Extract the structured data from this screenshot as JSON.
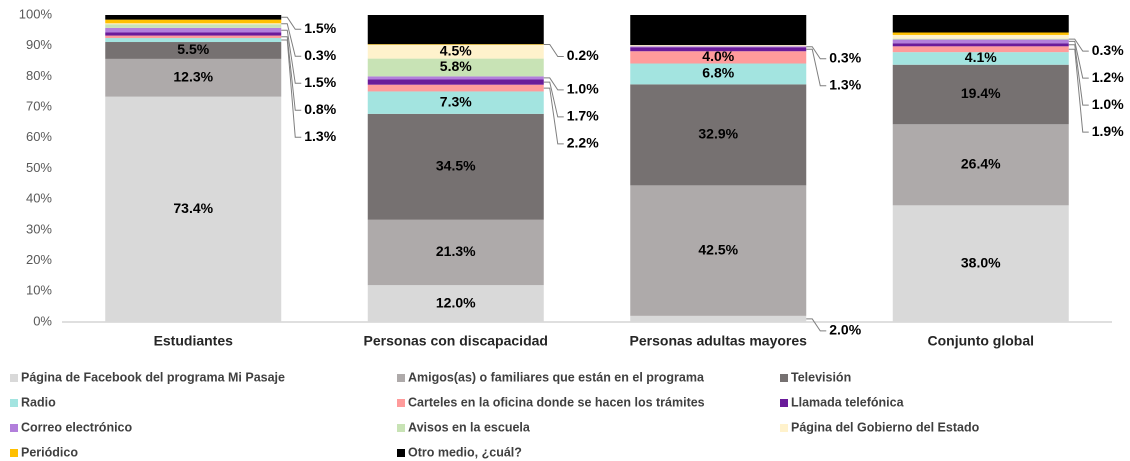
{
  "chart_data": {
    "type": "stacked_bar",
    "categories": [
      "Estudiantes",
      "Personas con discapacidad",
      "Personas adultas mayores",
      "Conjunto global"
    ],
    "ylim": [
      0,
      100
    ],
    "yticks": [
      {
        "value": 0,
        "label": "0%"
      },
      {
        "value": 10,
        "label": "10%"
      },
      {
        "value": 20,
        "label": "20%"
      },
      {
        "value": 30,
        "label": "30%"
      },
      {
        "value": 40,
        "label": "40%"
      },
      {
        "value": 50,
        "label": "50%"
      },
      {
        "value": 60,
        "label": "60%"
      },
      {
        "value": 70,
        "label": "70%"
      },
      {
        "value": 80,
        "label": "80%"
      },
      {
        "value": 90,
        "label": "90%"
      },
      {
        "value": 100,
        "label": "100%"
      }
    ],
    "grid": false,
    "legend": "bottom",
    "series": [
      {
        "name": "Página de Facebook del programa Mi Pasaje",
        "color": "#d9d9d9",
        "values": [
          73.4,
          12.0,
          2.0,
          38.0
        ],
        "value_labels": [
          "73.4%",
          "12.0%",
          "2.0%",
          "38.0%"
        ]
      },
      {
        "name": "Amigos(as) o familiares que están en el programa",
        "color": "#aeaaaa",
        "values": [
          12.3,
          21.3,
          42.5,
          26.4
        ],
        "value_labels": [
          "12.3%",
          "21.3%",
          "42.5%",
          "26.4%"
        ]
      },
      {
        "name": "Televisión",
        "color": "#767171",
        "values": [
          5.5,
          34.5,
          32.9,
          19.4
        ],
        "value_labels": [
          "5.5%",
          "34.5%",
          "32.9%",
          "19.4%"
        ]
      },
      {
        "name": "Radio",
        "color": "#a3e4e0",
        "values": [
          1.3,
          7.3,
          6.8,
          4.1
        ],
        "value_labels": [
          "1.3%",
          "7.3%",
          "6.8%",
          "4.1%"
        ]
      },
      {
        "name": "Carteles en la oficina donde se hacen los trámites",
        "color": "#ff9b9b",
        "values": [
          0.8,
          2.2,
          4.0,
          1.9
        ],
        "value_labels": [
          "0.8%",
          "2.2%",
          "4.0%",
          "1.9%"
        ]
      },
      {
        "name": "Llamada telefónica",
        "color": "#6a1b9a",
        "values": [
          1.0,
          1.7,
          1.3,
          1.0
        ],
        "value_labels": [
          null,
          "1.7%",
          "1.3%",
          "1.0%"
        ]
      },
      {
        "name": "Correo electrónico",
        "color": "#b27fdb",
        "values": [
          1.5,
          1.0,
          0.3,
          1.2
        ],
        "value_labels": [
          "1.5%",
          "1.0%",
          "0.3%",
          "1.2%"
        ]
      },
      {
        "name": "Avisos en la escuela",
        "color": "#c8e3b5",
        "values": [
          1.2,
          5.8,
          0,
          0.3
        ],
        "value_labels": [
          null,
          "5.8%",
          null,
          "0.3%"
        ]
      },
      {
        "name": "Página del Gobierno del Estado",
        "color": "#fff2cc",
        "values": [
          0.3,
          4.5,
          0.4,
          1.2
        ],
        "value_labels": [
          "0.3%",
          "4.5%",
          null,
          null
        ]
      },
      {
        "name": "Periódico",
        "color": "#ffc000",
        "values": [
          1.2,
          0.2,
          0,
          0.8
        ],
        "value_labels": [
          null,
          "0.2%",
          null,
          null
        ]
      },
      {
        "name": "Otro medio, ¿cuál?",
        "color": "#000000",
        "values": [
          1.5,
          9.5,
          9.8,
          5.7
        ],
        "value_labels": [
          "1.5%",
          "9.5%",
          "9.8%",
          "5.7%"
        ]
      }
    ]
  }
}
